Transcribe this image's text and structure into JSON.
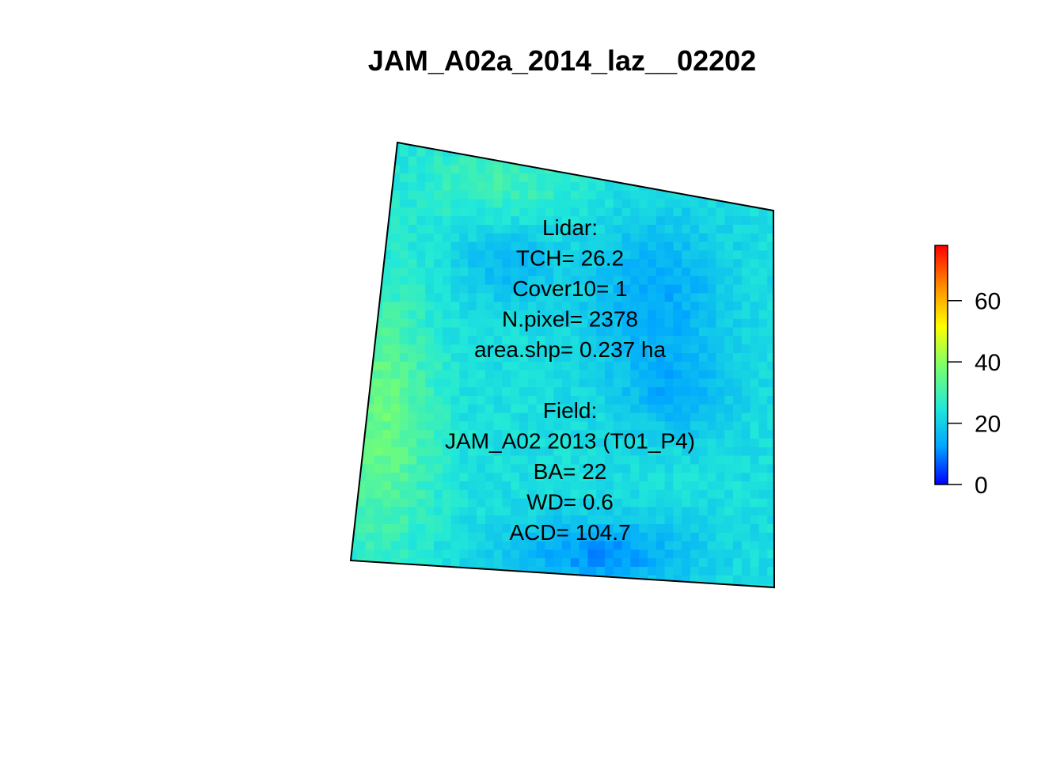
{
  "chart_data": {
    "type": "heatmap",
    "title": "JAM_A02a_2014_laz__02202",
    "colorbar": {
      "range": [
        0,
        78
      ],
      "ticks": [
        "0",
        "20",
        "40",
        "60"
      ],
      "tick_values": [
        0,
        20,
        40,
        60
      ],
      "colors": [
        "#0000ff",
        "#00a5ff",
        "#21e8d8",
        "#7dff6a",
        "#ffff00",
        "#ff8c00",
        "#ff0000"
      ],
      "placement": "right"
    },
    "annotation_lines": [
      "Lidar:",
      "TCH= 26.2",
      "Cover10= 1",
      "N.pixel= 2378",
      "area.shp= 0.237 ha",
      "",
      "Field:",
      "JAM_A02 2013 (T01_P4)",
      "BA= 22",
      "WD= 0.6",
      "ACD= 104.7"
    ]
  }
}
